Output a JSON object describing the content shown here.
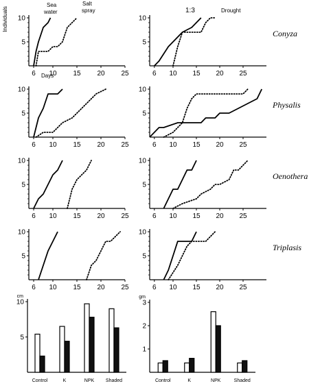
{
  "chart_data": {
    "header": {
      "ylabel": "Individuals",
      "xlabel": "Days",
      "legend_sea_water": [
        "Sea",
        "water"
      ],
      "legend_salt_spray": [
        "Salt",
        "spray"
      ],
      "ratio": "1:3",
      "drought": "Drought"
    },
    "line_panels": [
      {
        "species": "Conyza",
        "row": 0,
        "col": 0,
        "type": "line",
        "ylim": [
          0,
          10
        ],
        "yticks": [
          5,
          10
        ],
        "xlim": [
          5,
          25
        ],
        "xticks": [
          6,
          10,
          15,
          20,
          25
        ],
        "series": [
          {
            "name": "Sea water",
            "style": "solid",
            "x": [
              6,
              6.5,
              7,
              8,
              9,
              9.5
            ],
            "y": [
              0,
              3,
              5,
              8,
              9,
              10
            ]
          },
          {
            "name": "Salt spray",
            "style": "dotted",
            "x": [
              6.5,
              7,
              9,
              10,
              11,
              12,
              13,
              14,
              15
            ],
            "y": [
              0,
              3,
              3,
              4,
              4,
              5,
              8,
              9,
              10
            ]
          }
        ]
      },
      {
        "species": "Conyza",
        "row": 0,
        "col": 1,
        "type": "line",
        "ylim": [
          0,
          10
        ],
        "yticks": [
          5,
          10
        ],
        "xlim": [
          5,
          30
        ],
        "xticks": [
          6,
          10,
          15,
          20,
          25
        ],
        "series": [
          {
            "name": "1:3",
            "style": "solid",
            "x": [
              6,
              7,
              9,
              10,
              12,
              14,
              15,
              16
            ],
            "y": [
              0,
              1,
              4,
              5,
              7,
              8,
              9,
              10
            ]
          },
          {
            "name": "Drought",
            "style": "dotted",
            "x": [
              10,
              11,
              12,
              13,
              16,
              17,
              18,
              19
            ],
            "y": [
              0,
              4,
              7,
              7,
              7,
              9,
              10,
              10
            ]
          }
        ]
      },
      {
        "species": "Physalis",
        "row": 1,
        "col": 0,
        "type": "line",
        "ylim": [
          0,
          10
        ],
        "yticks": [
          5,
          10
        ],
        "xlim": [
          5,
          25
        ],
        "xticks": [
          6,
          10,
          15,
          20,
          25
        ],
        "series": [
          {
            "name": "Sea water",
            "style": "solid",
            "x": [
              6,
              6.5,
              7,
              8,
              9,
              10,
              11,
              12
            ],
            "y": [
              0,
              2,
              4,
              6,
              9,
              9,
              9,
              10
            ]
          },
          {
            "name": "Salt spray",
            "style": "dotted",
            "x": [
              6.5,
              8,
              10,
              11,
              12,
              14,
              16,
              17,
              18,
              19,
              21
            ],
            "y": [
              0,
              1,
              1,
              2,
              3,
              4,
              6,
              7,
              8,
              9,
              10
            ]
          }
        ]
      },
      {
        "species": "Physalis",
        "row": 1,
        "col": 1,
        "type": "line",
        "ylim": [
          0,
          10
        ],
        "yticks": [
          5,
          10
        ],
        "xlim": [
          5,
          30
        ],
        "xticks": [
          6,
          10,
          15,
          20,
          25
        ],
        "series": [
          {
            "name": "1:3",
            "style": "solid",
            "x": [
              5,
              6,
              7,
              8,
              11,
              16,
              17,
              19,
              20,
              22,
              24,
              26,
              28,
              29
            ],
            "y": [
              0,
              1,
              2,
              2,
              3,
              3,
              4,
              4,
              5,
              5,
              6,
              7,
              8,
              10
            ]
          },
          {
            "name": "Drought",
            "style": "dotted",
            "x": [
              8,
              10,
              12,
              13,
              14,
              15,
              17,
              20,
              22,
              24,
              25,
              26
            ],
            "y": [
              0,
              1,
              3,
              6,
              8,
              9,
              9,
              9,
              9,
              9,
              9,
              10
            ]
          }
        ]
      },
      {
        "species": "Oenothera",
        "row": 2,
        "col": 0,
        "type": "line",
        "ylim": [
          0,
          10
        ],
        "yticks": [
          5,
          10
        ],
        "xlim": [
          5,
          25
        ],
        "xticks": [
          6,
          10,
          15,
          20,
          25
        ],
        "series": [
          {
            "name": "Sea water",
            "style": "solid",
            "x": [
              6,
              7,
              8,
              9,
              10,
              11,
              12
            ],
            "y": [
              0,
              2,
              3,
              5,
              7,
              8,
              10
            ]
          },
          {
            "name": "Salt spray",
            "style": "dotted",
            "x": [
              13,
              14,
              15,
              16,
              17,
              18
            ],
            "y": [
              0,
              4,
              6,
              7,
              8,
              10
            ]
          }
        ]
      },
      {
        "species": "Oenothera",
        "row": 2,
        "col": 1,
        "type": "line",
        "ylim": [
          0,
          10
        ],
        "yticks": [
          5,
          10
        ],
        "xlim": [
          5,
          30
        ],
        "xticks": [
          6,
          10,
          15,
          20,
          25
        ],
        "series": [
          {
            "name": "1:3",
            "style": "solid",
            "x": [
              8,
              10,
              11,
              12,
              13,
              14,
              15
            ],
            "y": [
              0,
              4,
              4,
              6,
              8,
              8,
              10
            ]
          },
          {
            "name": "Drought",
            "style": "dotted",
            "x": [
              10,
              12,
              15,
              16,
              18,
              19,
              20,
              22,
              23,
              24,
              26
            ],
            "y": [
              0,
              1,
              2,
              3,
              4,
              5,
              5,
              6,
              8,
              8,
              10
            ]
          }
        ]
      },
      {
        "species": "Triplasis",
        "row": 3,
        "col": 0,
        "type": "line",
        "ylim": [
          0,
          10
        ],
        "yticks": [
          5,
          10
        ],
        "xlim": [
          5,
          25
        ],
        "xticks": [
          6,
          10,
          15,
          20,
          25
        ],
        "series": [
          {
            "name": "Sea water",
            "style": "solid",
            "x": [
              7,
              8,
              9,
              10,
              11
            ],
            "y": [
              0,
              3,
              6,
              8,
              10
            ]
          },
          {
            "name": "Salt spray",
            "style": "dotted",
            "x": [
              17,
              18,
              19,
              20,
              21,
              22,
              23,
              24
            ],
            "y": [
              0,
              3,
              4,
              6,
              8,
              8,
              9,
              10
            ]
          }
        ]
      },
      {
        "species": "Triplasis",
        "row": 3,
        "col": 1,
        "type": "line",
        "ylim": [
          0,
          10
        ],
        "yticks": [
          5,
          10
        ],
        "xlim": [
          5,
          30
        ],
        "xticks": [
          6,
          10,
          15,
          20,
          25
        ],
        "series": [
          {
            "name": "1:3",
            "style": "solid",
            "x": [
              8,
              9,
              10,
              11,
              13,
              14,
              15
            ],
            "y": [
              0,
              2,
              5,
              8,
              8,
              8,
              10
            ]
          },
          {
            "name": "Drought",
            "style": "dotted",
            "x": [
              9,
              11,
              12,
              13,
              14,
              16,
              17,
              18,
              19
            ],
            "y": [
              0,
              3,
              5,
              7,
              8,
              8,
              8,
              9,
              10
            ]
          }
        ]
      }
    ],
    "bar_panels": [
      {
        "type": "bar",
        "unit": "cm",
        "ylim": [
          0,
          10
        ],
        "yticks": [
          5,
          10
        ],
        "categories": [
          "Control",
          "K",
          "NPK",
          "Shaded"
        ],
        "series": [
          {
            "fill": "white",
            "values": [
              5.4,
              6.5,
              9.7,
              9.0
            ]
          },
          {
            "fill": "black",
            "values": [
              2.3,
              4.4,
              7.8,
              6.3
            ]
          }
        ]
      },
      {
        "type": "bar",
        "unit": "gm",
        "ylim": [
          0,
          3
        ],
        "yticks": [
          1,
          2,
          3
        ],
        "categories": [
          "Control",
          "K",
          "NPK",
          "Shaded"
        ],
        "series": [
          {
            "fill": "white",
            "values": [
              0.4,
              0.4,
              2.6,
              0.4
            ]
          },
          {
            "fill": "black",
            "values": [
              0.5,
              0.6,
              2.0,
              0.5
            ]
          }
        ]
      }
    ]
  }
}
